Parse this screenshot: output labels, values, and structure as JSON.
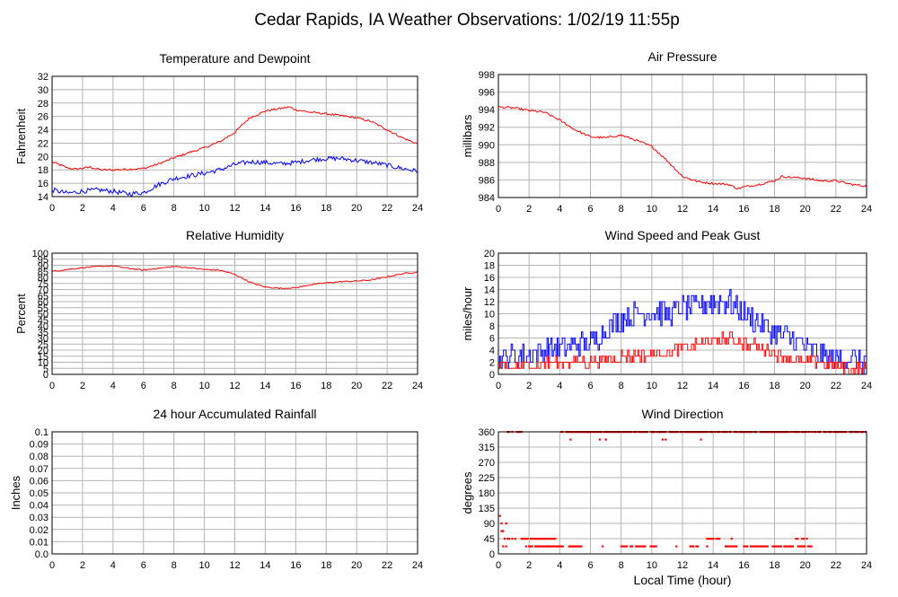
{
  "page": {
    "title": "Cedar Rapids, IA Weather Observations: 1/02/19 11:55p",
    "x_axis_label": "Local Time (hour)"
  },
  "colors": {
    "red": "#ff0000",
    "blue": "#0000ff",
    "grid": "#b4b4b4",
    "frame": "#000000"
  },
  "chart_data": [
    {
      "id": "temperature",
      "type": "line",
      "title": "Temperature and Dewpoint",
      "ylabel": "Fahrenheit",
      "xlim": [
        0,
        24
      ],
      "xticks": [
        0,
        2,
        4,
        6,
        8,
        10,
        12,
        14,
        16,
        18,
        20,
        22,
        24
      ],
      "ylim": [
        14,
        32
      ],
      "yticks": [
        14,
        16,
        18,
        20,
        22,
        24,
        26,
        28,
        30,
        32
      ],
      "grid": true,
      "series": [
        {
          "color": "#ff0000",
          "points": [
            [
              0,
              19.2
            ],
            [
              1,
              18.3
            ],
            [
              1.5,
              18.1
            ],
            [
              2.5,
              18.4
            ],
            [
              3.2,
              18.0
            ],
            [
              4,
              18.0
            ],
            [
              5,
              18.1
            ],
            [
              6,
              18.2
            ],
            [
              7,
              18.9
            ],
            [
              8,
              19.8
            ],
            [
              9,
              20.6
            ],
            [
              10,
              21.3
            ],
            [
              11,
              22.2
            ],
            [
              12,
              23.6
            ],
            [
              12.6,
              25.0
            ],
            [
              13,
              25.8
            ],
            [
              14,
              26.8
            ],
            [
              15,
              27.2
            ],
            [
              15.6,
              27.4
            ],
            [
              16,
              27.0
            ],
            [
              17,
              26.6
            ],
            [
              18,
              26.4
            ],
            [
              19,
              26.1
            ],
            [
              20,
              25.8
            ],
            [
              21,
              25.2
            ],
            [
              22,
              24.0
            ],
            [
              23,
              22.8
            ],
            [
              24,
              21.9
            ]
          ],
          "noise": 0.15
        },
        {
          "color": "#0000ff",
          "points": [
            [
              0,
              15.0
            ],
            [
              1,
              14.5
            ],
            [
              2,
              14.8
            ],
            [
              3,
              15.0
            ],
            [
              4,
              14.8
            ],
            [
              5,
              14.4
            ],
            [
              6,
              14.6
            ],
            [
              7,
              15.8
            ],
            [
              8,
              16.7
            ],
            [
              9,
              17.1
            ],
            [
              10,
              17.5
            ],
            [
              11,
              18.0
            ],
            [
              12,
              18.8
            ],
            [
              13,
              19.2
            ],
            [
              14,
              19.1
            ],
            [
              15,
              18.9
            ],
            [
              16,
              19.1
            ],
            [
              17,
              19.5
            ],
            [
              18,
              19.7
            ],
            [
              19,
              19.7
            ],
            [
              20,
              19.4
            ],
            [
              21,
              19.1
            ],
            [
              22,
              18.7
            ],
            [
              23,
              18.2
            ],
            [
              24,
              17.8
            ]
          ],
          "noise": 0.35
        }
      ]
    },
    {
      "id": "pressure",
      "type": "line",
      "title": "Air Pressure",
      "ylabel": "millibars",
      "xlim": [
        0,
        24
      ],
      "xticks": [
        0,
        2,
        4,
        6,
        8,
        10,
        12,
        14,
        16,
        18,
        20,
        22,
        24
      ],
      "ylim": [
        984,
        998
      ],
      "yticks": [
        984,
        986,
        988,
        990,
        992,
        994,
        996,
        998
      ],
      "grid": true,
      "series": [
        {
          "color": "#ff0000",
          "points": [
            [
              0,
              994.3
            ],
            [
              1,
              994.2
            ],
            [
              2,
              993.9
            ],
            [
              3,
              993.7
            ],
            [
              4,
              992.8
            ],
            [
              5,
              991.7
            ],
            [
              6,
              990.9
            ],
            [
              7,
              990.8
            ],
            [
              8,
              991.1
            ],
            [
              9,
              990.5
            ],
            [
              10,
              989.8
            ],
            [
              11,
              988.2
            ],
            [
              12,
              986.4
            ],
            [
              13,
              985.8
            ],
            [
              14,
              985.6
            ],
            [
              15,
              985.5
            ],
            [
              15.6,
              985.0
            ],
            [
              16,
              985.2
            ],
            [
              17,
              985.5
            ],
            [
              18,
              985.9
            ],
            [
              18.5,
              986.4
            ],
            [
              19,
              986.3
            ],
            [
              20,
              986.2
            ],
            [
              21,
              985.9
            ],
            [
              22,
              985.9
            ],
            [
              23,
              985.5
            ],
            [
              24,
              985.3
            ]
          ],
          "noise": 0.12
        }
      ]
    },
    {
      "id": "humidity",
      "type": "line",
      "title": "Relative Humidity",
      "ylabel": "Percent",
      "xlim": [
        0,
        24
      ],
      "xticks": [
        0,
        2,
        4,
        6,
        8,
        10,
        12,
        14,
        16,
        18,
        20,
        22,
        24
      ],
      "ylim": [
        0,
        100
      ],
      "yticks": [
        0,
        5,
        10,
        15,
        20,
        25,
        30,
        35,
        40,
        45,
        50,
        55,
        60,
        65,
        70,
        75,
        80,
        85,
        90,
        95,
        100
      ],
      "grid": true,
      "series": [
        {
          "color": "#ff0000",
          "points": [
            [
              0,
              85
            ],
            [
              1,
              86.5
            ],
            [
              2,
              88
            ],
            [
              3,
              89
            ],
            [
              4,
              89.5
            ],
            [
              5,
              87.5
            ],
            [
              6,
              86
            ],
            [
              7,
              87.5
            ],
            [
              8,
              89
            ],
            [
              9,
              88
            ],
            [
              10,
              86.5
            ],
            [
              11,
              86
            ],
            [
              12,
              82.5
            ],
            [
              13,
              76
            ],
            [
              14,
              72
            ],
            [
              15,
              71
            ],
            [
              16,
              71.5
            ],
            [
              17,
              74
            ],
            [
              18,
              75.5
            ],
            [
              19,
              76.5
            ],
            [
              20,
              77
            ],
            [
              21,
              78
            ],
            [
              22,
              80.5
            ],
            [
              23,
              83
            ],
            [
              24,
              84.5
            ]
          ],
          "noise": 0.5
        }
      ]
    },
    {
      "id": "wind-speed",
      "type": "line",
      "title": "Wind Speed and Peak Gust",
      "ylabel": "miles/hour",
      "xlim": [
        0,
        24
      ],
      "xticks": [
        0,
        2,
        4,
        6,
        8,
        10,
        12,
        14,
        16,
        18,
        20,
        22,
        24
      ],
      "ylim": [
        0,
        20
      ],
      "yticks": [
        0,
        2,
        4,
        6,
        8,
        10,
        12,
        14,
        16,
        18,
        20
      ],
      "grid": true,
      "series": [
        {
          "color": "#0000ff",
          "step": true,
          "points": [
            [
              0,
              2.5
            ],
            [
              2,
              3.5
            ],
            [
              4,
              4.5
            ],
            [
              6,
              5
            ],
            [
              7,
              7.5
            ],
            [
              8,
              9
            ],
            [
              9,
              10
            ],
            [
              10,
              10.5
            ],
            [
              11,
              10
            ],
            [
              12,
              11
            ],
            [
              13,
              11.5
            ],
            [
              14,
              12
            ],
            [
              15,
              12
            ],
            [
              16,
              10
            ],
            [
              17,
              8.5
            ],
            [
              18,
              7
            ],
            [
              19,
              6
            ],
            [
              20,
              4.5
            ],
            [
              21,
              3
            ],
            [
              22,
              2.5
            ],
            [
              23,
              2.5
            ],
            [
              24,
              2
            ]
          ],
          "noise": 2.0
        },
        {
          "color": "#ff0000",
          "step": true,
          "points": [
            [
              0,
              1
            ],
            [
              2,
              1.5
            ],
            [
              4,
              2
            ],
            [
              6,
              2
            ],
            [
              7,
              2.5
            ],
            [
              8,
              3
            ],
            [
              9,
              3
            ],
            [
              10,
              3.5
            ],
            [
              11,
              3.5
            ],
            [
              12,
              4.5
            ],
            [
              13,
              5
            ],
            [
              14,
              5.5
            ],
            [
              15,
              6
            ],
            [
              16,
              5
            ],
            [
              17,
              4.5
            ],
            [
              18,
              3.5
            ],
            [
              19,
              2.5
            ],
            [
              20,
              2
            ],
            [
              21,
              2
            ],
            [
              22,
              1.5
            ],
            [
              23,
              1
            ],
            [
              24,
              1
            ]
          ],
          "noise": 0.9
        }
      ]
    },
    {
      "id": "rainfall",
      "type": "line",
      "title": "24 hour Accumulated Rainfall",
      "ylabel": "Inches",
      "xlim": [
        0,
        24
      ],
      "xticks": [
        0,
        2,
        4,
        6,
        8,
        10,
        12,
        14,
        16,
        18,
        20,
        22,
        24
      ],
      "ylim": [
        0,
        0.1
      ],
      "yticks": [
        "0.0",
        "0.01",
        "0.02",
        "0.03",
        "0.04",
        "0.05",
        "0.06",
        "0.07",
        "0.08",
        "0.09",
        "0.1"
      ],
      "grid": true,
      "series": [
        {
          "color": "#ff0000",
          "points": [
            [
              0,
              0
            ],
            [
              24,
              0
            ]
          ],
          "noise": 0
        }
      ]
    },
    {
      "id": "wind-direction",
      "type": "scatter",
      "title": "Wind Direction",
      "ylabel": "degrees",
      "xlim": [
        0,
        24
      ],
      "xticks": [
        0,
        2,
        4,
        6,
        8,
        10,
        12,
        14,
        16,
        18,
        20,
        22,
        24
      ],
      "ylim": [
        0,
        360
      ],
      "yticks": [
        0,
        45,
        90,
        135,
        180,
        225,
        270,
        315,
        360
      ],
      "grid": true,
      "series": [
        {
          "color": "#ff0000",
          "runs": [
            {
              "x": [
                0.3,
                0.5
              ],
              "y": 22.5,
              "step": 0.1
            },
            {
              "x": [
                0.6,
                0.9
              ],
              "y": 360,
              "step": 0.1
            },
            {
              "x": [
                1.2,
                1.5
              ],
              "y": 360,
              "step": 0.1
            },
            {
              "x": [
                0.4,
                1.1
              ],
              "y": 45,
              "step": 0.1
            },
            {
              "x": [
                1.5,
                3.8
              ],
              "y": 45,
              "step": 0.1
            },
            {
              "x": [
                1.8,
                4.2
              ],
              "y": 22.5,
              "step": 0.1
            },
            {
              "x": [
                4.1,
                24
              ],
              "y": 360,
              "step": 0.08
            },
            {
              "x": [
                4.6,
                5.4
              ],
              "y": 22.5,
              "step": 0.1
            },
            {
              "x": [
                5.7,
                6.3
              ],
              "y": 360,
              "step": 0.1
            },
            {
              "x": [
                8.0,
                10.3
              ],
              "y": 22.5,
              "step": 0.12
            },
            {
              "x": [
                12.5,
                13.0
              ],
              "y": 22.5,
              "step": 0.1
            },
            {
              "x": [
                13.6,
                14.4
              ],
              "y": 45,
              "step": 0.1
            },
            {
              "x": [
                14.8,
                15.6
              ],
              "y": 22.5,
              "step": 0.12
            },
            {
              "x": [
                16.0,
                20.4
              ],
              "y": 22.5,
              "step": 0.11
            },
            {
              "x": [
                19.4,
                19.9
              ],
              "y": 45,
              "step": 0.1
            }
          ],
          "points": [
            [
              0.1,
              112.5
            ],
            [
              0.2,
              90
            ],
            [
              0.2,
              67.5
            ],
            [
              0.3,
              67.5
            ],
            [
              0.5,
              90
            ],
            [
              3.2,
              22.5
            ],
            [
              3.4,
              45
            ],
            [
              4.7,
              337.5
            ],
            [
              6.8,
              22.5
            ],
            [
              6.6,
              337.5
            ],
            [
              7.0,
              337.5
            ],
            [
              10.7,
              337.5
            ],
            [
              10.9,
              337.5
            ],
            [
              11.6,
              22.5
            ],
            [
              13.2,
              337.5
            ],
            [
              13.6,
              22.5
            ],
            [
              15.2,
              45
            ],
            [
              20.1,
              45
            ]
          ]
        }
      ]
    }
  ]
}
